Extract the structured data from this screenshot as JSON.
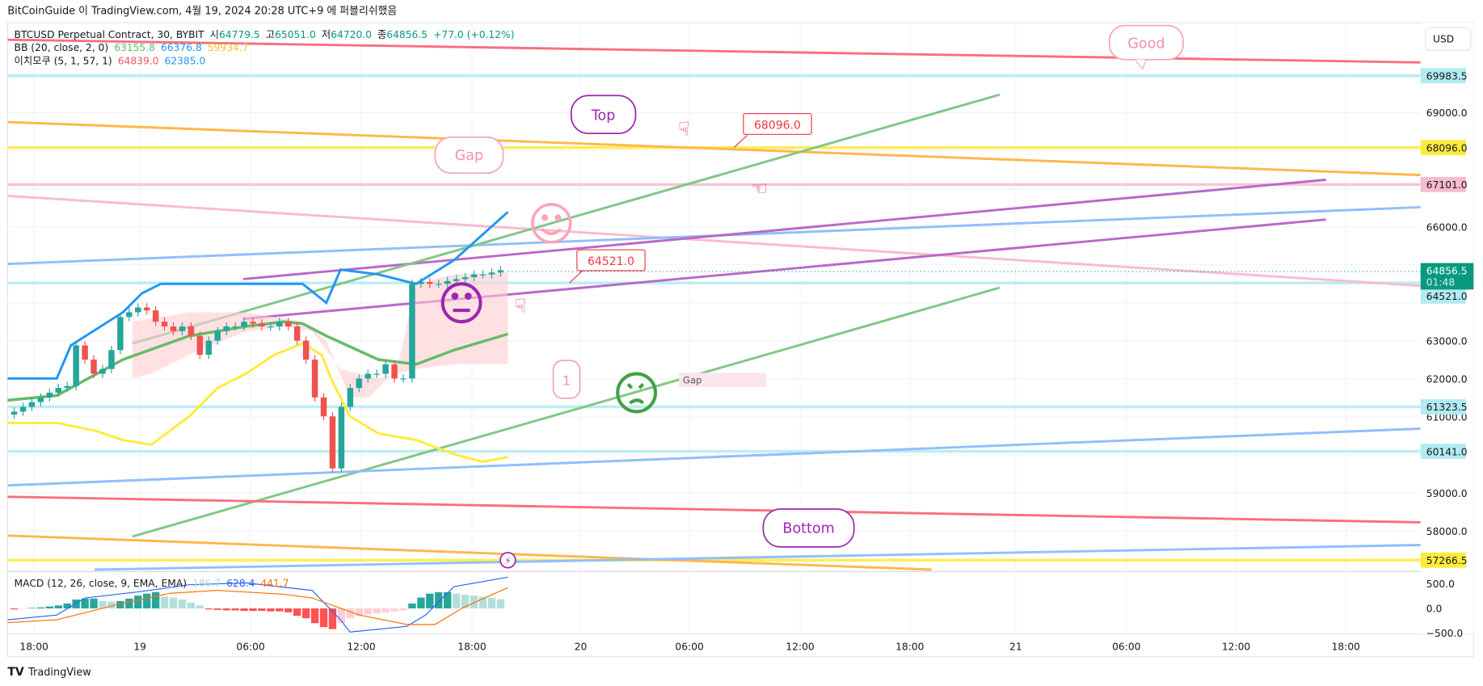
{
  "header": {
    "publish_text": "BitCoinGuide 이 TradingView.com, 4월 19, 2024 20:28 UTC+9 에 퍼블리쉬했음"
  },
  "legend": {
    "symbol": "BTCUSD Perpetual Contract, 30, BYBIT",
    "o_label": "시",
    "o": "64779.5",
    "h_label": "고",
    "h": "65051.0",
    "l_label": "저",
    "l": "64720.0",
    "c_label": "종",
    "c": "64856.5",
    "change": "+77.0 (+0.12%)",
    "bb": {
      "label": "BB (20, close, 2, 0)",
      "basis": "63155.8",
      "upper": "66376.8",
      "lower": "59934.7"
    },
    "ichimoku": {
      "label": "이치모쿠 (5, 1, 57, 1)",
      "v1": "64839.0",
      "v2": "62385.0"
    },
    "macd": {
      "label": "MACD (12, 26, close, 9, EMA, EMA)",
      "hist": "186.7",
      "macd": "628.4",
      "signal": "441.7"
    }
  },
  "currency_button": "USD",
  "price_axis": {
    "ticks": [
      "69000.0",
      "66000.0",
      "63000.0",
      "62000.0",
      "61000.0",
      "59000.0",
      "58000.0"
    ],
    "tags": [
      {
        "value": "69983.5",
        "color": "#b2ebf2"
      },
      {
        "value": "68096.0",
        "color": "#ffeb3b"
      },
      {
        "value": "67101.0",
        "color": "#f8bbd0"
      },
      {
        "value": "64521.0",
        "color": "#b2ebf2"
      },
      {
        "value": "61323.5",
        "color": "#b2ebf2"
      },
      {
        "value": "60141.0",
        "color": "#b2ebf2"
      },
      {
        "value": "57266.5",
        "color": "#ffeb3b"
      }
    ],
    "current_price": "64856.5",
    "countdown": "01:48",
    "macd_ticks": [
      "500.0",
      "0.0",
      "−500.0"
    ]
  },
  "time_axis": [
    "18:00",
    "19",
    "06:00",
    "12:00",
    "18:00",
    "20",
    "06:00",
    "12:00",
    "18:00",
    "21",
    "06:00",
    "12:00",
    "18:00"
  ],
  "annotations": {
    "good": "Good",
    "top": "Top",
    "gap": "Gap",
    "bottom": "Bottom",
    "price1": "68096.0",
    "price2": "64521.0",
    "one": "1",
    "gap_box": "Gap"
  },
  "footer": {
    "brand": "TradingView"
  },
  "colors": {
    "up": "#26a69a",
    "down": "#ef5350",
    "accent": "#089981"
  },
  "closes": [
    61139,
    61264,
    61388,
    61512,
    61637,
    61761,
    61811,
    62880,
    62507,
    62134,
    62259,
    62756,
    63627,
    63751,
    63876,
    63801,
    63502,
    63378,
    63254,
    63378,
    63129,
    62632,
    63005,
    63254,
    63378,
    63378,
    63502,
    63453,
    63378,
    63378,
    63502,
    63378,
    63005,
    62507,
    61512,
    61015,
    59647,
    61264,
    61761,
    62010,
    62134,
    62134,
    62383,
    62010,
    62010,
    64497,
    64547,
    64497,
    64497,
    64572,
    64622,
    64672,
    64746,
    64746,
    64796,
    64856.5
  ],
  "macd_hist": [
    -20,
    -10,
    10,
    20,
    40,
    60,
    100,
    180,
    200,
    200,
    150,
    140,
    150,
    200,
    260,
    300,
    330,
    240,
    220,
    180,
    120,
    60,
    -20,
    -30,
    -40,
    -40,
    -50,
    -50,
    -50,
    -60,
    -60,
    -80,
    -150,
    -200,
    -300,
    -380,
    -420,
    -300,
    -200,
    -150,
    -120,
    -100,
    -80,
    -60,
    -40,
    100,
    220,
    300,
    330,
    330,
    300,
    280,
    260,
    240,
    220,
    186.7
  ]
}
